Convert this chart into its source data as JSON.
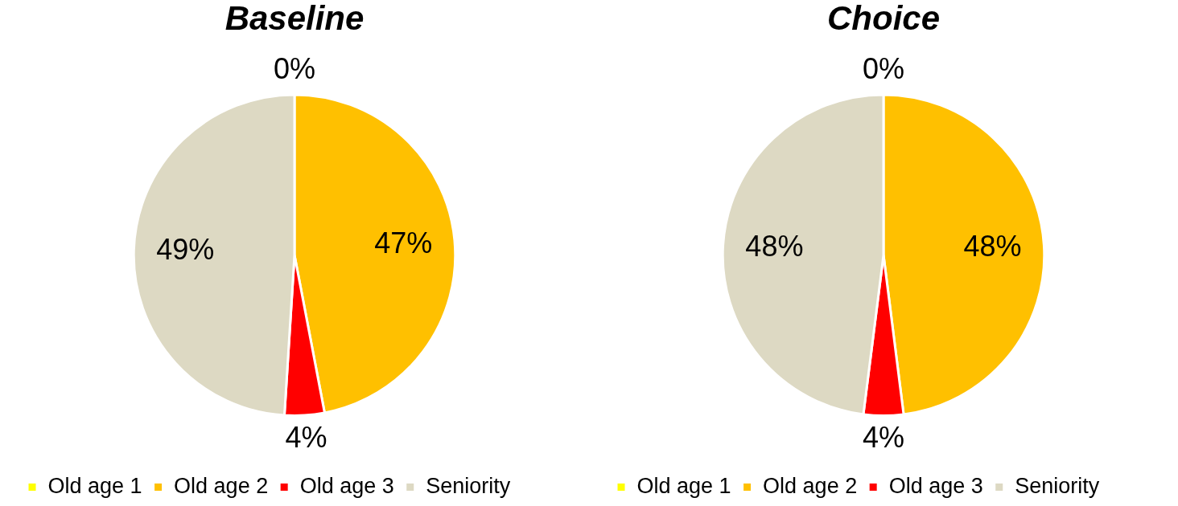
{
  "chart_data": [
    {
      "type": "pie",
      "title": "Baseline",
      "categories": [
        "Old age 1",
        "Old age 2",
        "Old age 3",
        "Seniority"
      ],
      "values": [
        0,
        47,
        4,
        49
      ],
      "value_labels": [
        "0%",
        "47%",
        "4%",
        "49%"
      ],
      "colors": [
        "#ffff00",
        "#ffc000",
        "#ff0000",
        "#ddd9c3"
      ],
      "legend": "bottom"
    },
    {
      "type": "pie",
      "title": "Choice",
      "categories": [
        "Old age 1",
        "Old age 2",
        "Old age 3",
        "Seniority"
      ],
      "values": [
        0,
        48,
        4,
        48
      ],
      "value_labels": [
        "0%",
        "48%",
        "4%",
        "48%"
      ],
      "colors": [
        "#ffff00",
        "#ffc000",
        "#ff0000",
        "#ddd9c3"
      ],
      "legend": "bottom"
    }
  ]
}
